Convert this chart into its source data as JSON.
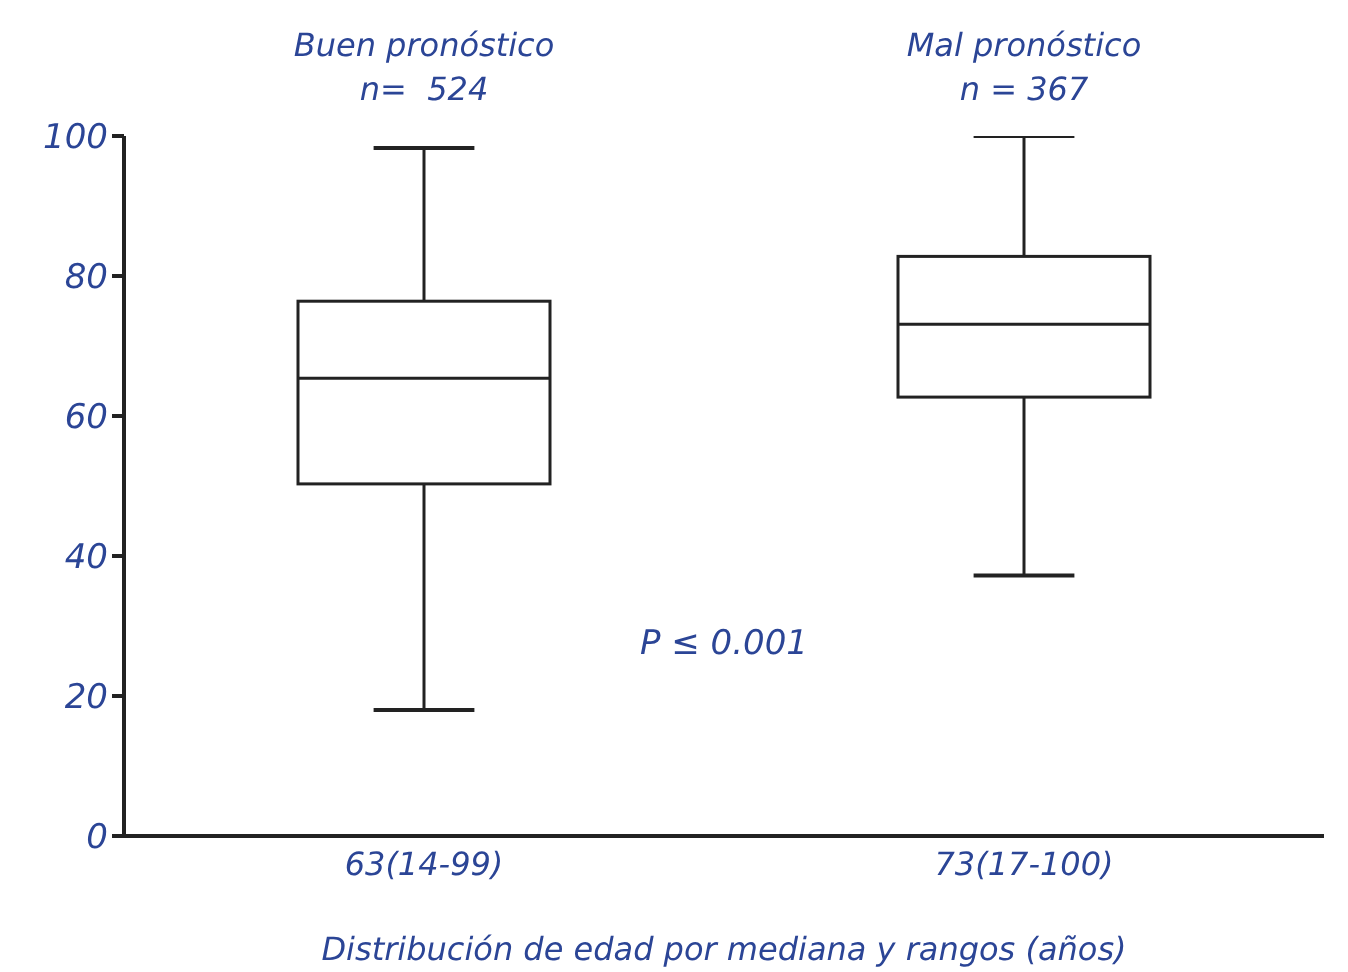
{
  "chart_data": {
    "type": "box",
    "categories": [
      "63(14-99)",
      "73(17-100)"
    ],
    "xlabel": "Distribución de edad por mediana y rangos (años)",
    "ylim": [
      0,
      100
    ],
    "yticks": [
      0,
      20,
      40,
      60,
      80,
      100
    ],
    "boxes": [
      {
        "low": 18,
        "q1": 50.3,
        "median": 65.4,
        "q3": 76.4,
        "high": 98.3
      },
      {
        "low": 37.2,
        "q1": 62.7,
        "median": 73.1,
        "q3": 82.8,
        "high": 100
      }
    ],
    "annotations": [
      "Buen pronóstico\nn=  524",
      "Mal pronóstico\nn = 367",
      "P ≤ 0.001"
    ]
  }
}
